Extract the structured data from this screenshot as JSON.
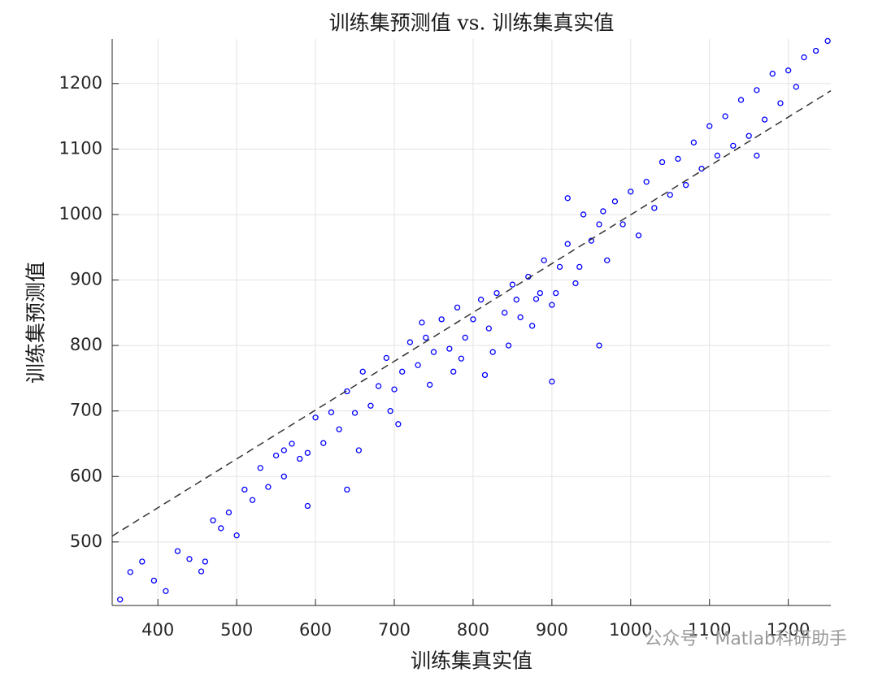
{
  "chart_data": {
    "type": "scatter",
    "title": "训练集预测值 vs. 训练集真实值",
    "x_label": "训练集真实值",
    "y_label": "训练集预测值",
    "watermark": "公众号 · Matlab科研助手",
    "xlim": [
      342,
      1254
    ],
    "ylim": [
      403,
      1268
    ],
    "xticks": [
      400,
      500,
      600,
      700,
      800,
      900,
      1000,
      1100,
      1200
    ],
    "yticks": [
      500,
      600,
      700,
      800,
      900,
      1000,
      1100,
      1200
    ],
    "grid": true,
    "color": "#0000ff",
    "x": [
      352,
      365,
      380,
      395,
      410,
      425,
      440,
      455,
      470,
      480,
      490,
      500,
      510,
      520,
      530,
      540,
      550,
      560,
      570,
      580,
      590,
      600,
      610,
      620,
      630,
      640,
      650,
      660,
      670,
      680,
      690,
      700,
      710,
      720,
      730,
      740,
      750,
      760,
      770,
      780,
      790,
      800,
      810,
      820,
      830,
      840,
      850,
      860,
      870,
      880,
      890,
      900,
      910,
      920,
      930,
      940,
      950,
      960,
      970,
      980,
      990,
      1000,
      1010,
      1020,
      1030,
      1040,
      1050,
      1060,
      1070,
      1080,
      1090,
      1100,
      1110,
      1120,
      1130,
      1140,
      1150,
      1160,
      1170,
      1180,
      1190,
      1200,
      1210,
      1220,
      1235,
      1250,
      705,
      745,
      785,
      815,
      845,
      875,
      905,
      935,
      965,
      655,
      695,
      735,
      775,
      825,
      855,
      885,
      960,
      560,
      900,
      460,
      1160,
      920,
      640,
      590
    ],
    "y": [
      412,
      454,
      470,
      441,
      425,
      486,
      474,
      455,
      533,
      521,
      545,
      510,
      580,
      564,
      613,
      584,
      632,
      600,
      650,
      627,
      636,
      690,
      651,
      698,
      672,
      730,
      697,
      760,
      708,
      738,
      781,
      733,
      760,
      805,
      770,
      812,
      790,
      840,
      795,
      858,
      812,
      840,
      870,
      826,
      880,
      850,
      893,
      843,
      905,
      871,
      930,
      862,
      920,
      955,
      895,
      1000,
      960,
      985,
      930,
      1020,
      985,
      1035,
      968,
      1050,
      1010,
      1080,
      1030,
      1085,
      1045,
      1110,
      1070,
      1135,
      1090,
      1150,
      1105,
      1175,
      1120,
      1190,
      1145,
      1215,
      1170,
      1220,
      1195,
      1240,
      1250,
      1265,
      680,
      740,
      780,
      755,
      800,
      830,
      880,
      920,
      1005,
      640,
      700,
      835,
      760,
      790,
      870,
      880,
      800,
      640,
      745,
      470,
      1090,
      1025,
      580,
      555
    ],
    "reference_line": {
      "x": [
        342,
        1254
      ],
      "y": [
        509,
        1189
      ],
      "color": "#333333"
    }
  }
}
